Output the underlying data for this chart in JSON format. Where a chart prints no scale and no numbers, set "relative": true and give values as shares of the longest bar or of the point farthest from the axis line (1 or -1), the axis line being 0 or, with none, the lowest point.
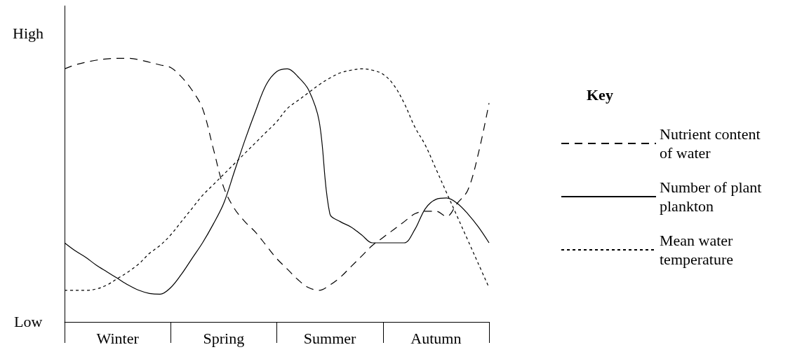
{
  "chart_data": {
    "type": "line",
    "relative": true,
    "legend": "right",
    "legend_title": "Key",
    "grid": false,
    "marker": "none",
    "annotations": [
      "High",
      "Low"
    ],
    "categories": [
      null,
      null,
      null,
      null,
      null,
      "Winter",
      null,
      null,
      null,
      null,
      null,
      null,
      null,
      null,
      null,
      "Spring",
      null,
      null,
      null,
      null,
      null,
      null,
      null,
      null,
      null,
      "Summer",
      null,
      null,
      null,
      null,
      null,
      null,
      null,
      null,
      null,
      "Autumn",
      null,
      null,
      null,
      null,
      null
    ],
    "series": [
      {
        "name": "Nutrient content of water",
        "color": "#000000",
        "line_style": "dashed",
        "values": [
          0.96,
          0.975,
          0.985,
          0.993,
          0.998,
          1.0,
          1.0,
          0.995,
          0.985,
          0.975,
          0.965,
          0.93,
          0.88,
          0.81,
          0.66,
          0.51,
          0.43,
          0.38,
          0.34,
          0.29,
          0.24,
          0.2,
          0.16,
          0.13,
          0.12,
          0.14,
          0.17,
          0.21,
          0.25,
          0.29,
          0.32,
          0.35,
          0.38,
          0.41,
          0.42,
          0.42,
          0.4,
          0.45,
          0.5,
          0.64,
          0.83
        ]
      },
      {
        "name": "Number of plant plankton",
        "color": "#000000",
        "line_style": "solid",
        "values": [
          0.3,
          0.27,
          0.245,
          0.215,
          0.19,
          0.165,
          0.14,
          0.12,
          0.108,
          0.105,
          0.13,
          0.18,
          0.24,
          0.3,
          0.37,
          0.45,
          0.57,
          0.69,
          0.8,
          0.9,
          0.95,
          0.96,
          0.93,
          0.88,
          0.76,
          0.41,
          0.38,
          0.36,
          0.33,
          0.3,
          0.3,
          0.3,
          0.3,
          0.35,
          0.43,
          0.465,
          0.47,
          0.45,
          0.41,
          0.36,
          0.3
        ]
      },
      {
        "name": "Mean water temperature",
        "color": "#000000",
        "line_style": "dotted",
        "values": [
          0.12,
          0.12,
          0.12,
          0.125,
          0.14,
          0.165,
          0.19,
          0.22,
          0.26,
          0.29,
          0.33,
          0.38,
          0.43,
          0.48,
          0.52,
          0.56,
          0.6,
          0.64,
          0.68,
          0.72,
          0.76,
          0.81,
          0.84,
          0.87,
          0.9,
          0.925,
          0.945,
          0.955,
          0.96,
          0.955,
          0.94,
          0.9,
          0.83,
          0.74,
          0.67,
          0.58,
          0.49,
          0.4,
          0.31,
          0.22,
          0.13
        ]
      }
    ]
  }
}
